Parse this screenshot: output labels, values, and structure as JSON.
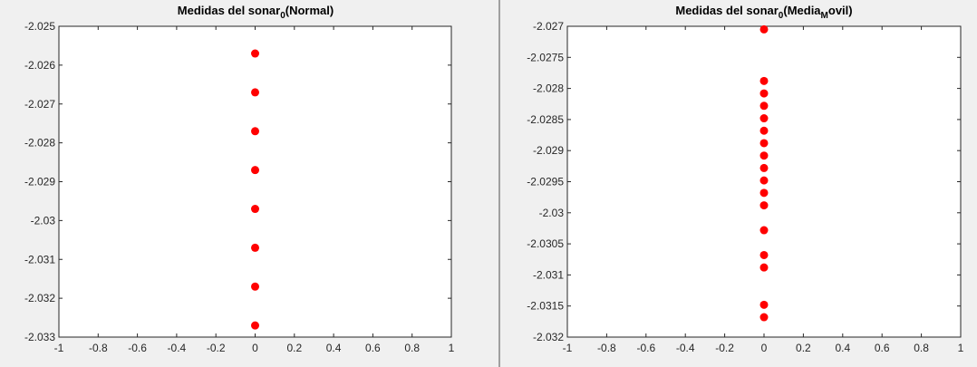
{
  "chart_data": [
    {
      "type": "scatter",
      "title": {
        "main": "Medidas del sonar",
        "sub": "0",
        "suffix": "(Normal)"
      },
      "xlim": [
        -1,
        1
      ],
      "ylim": [
        -2.033,
        -2.025
      ],
      "xticks": [
        -1,
        -0.8,
        -0.6,
        -0.4,
        -0.2,
        0,
        0.2,
        0.4,
        0.6,
        0.8,
        1
      ],
      "xtick_labels": [
        "-1",
        "-0.8",
        "-0.6",
        "-0.4",
        "-0.2",
        "0",
        "0.2",
        "0.4",
        "0.6",
        "0.8",
        "1"
      ],
      "yticks": [
        -2.025,
        -2.026,
        -2.027,
        -2.028,
        -2.029,
        -2.03,
        -2.031,
        -2.032,
        -2.033
      ],
      "ytick_labels": [
        "-2.025",
        "-2.026",
        "-2.027",
        "-2.028",
        "-2.029",
        "-2.03",
        "-2.031",
        "-2.032",
        "-2.033"
      ],
      "grid": false,
      "marker_color": "#ff0000",
      "points": [
        {
          "x": 0,
          "y": -2.0257
        },
        {
          "x": 0,
          "y": -2.0267
        },
        {
          "x": 0,
          "y": -2.0277
        },
        {
          "x": 0,
          "y": -2.0287
        },
        {
          "x": 0,
          "y": -2.0297
        },
        {
          "x": 0,
          "y": -2.0307
        },
        {
          "x": 0,
          "y": -2.0317
        },
        {
          "x": 0,
          "y": -2.0327
        }
      ]
    },
    {
      "type": "scatter",
      "title": {
        "main": "Medidas del sonar",
        "sub": "0",
        "suffix": "(Media",
        "sub2": "M",
        "suffix2": "ovil)"
      },
      "xlim": [
        -1,
        1
      ],
      "ylim": [
        -2.032,
        -2.027
      ],
      "xticks": [
        -1,
        -0.8,
        -0.6,
        -0.4,
        -0.2,
        0,
        0.2,
        0.4,
        0.6,
        0.8,
        1
      ],
      "xtick_labels": [
        "-1",
        "-0.8",
        "-0.6",
        "-0.4",
        "-0.2",
        "0",
        "0.2",
        "0.4",
        "0.6",
        "0.8",
        "1"
      ],
      "yticks": [
        -2.027,
        -2.0275,
        -2.028,
        -2.0285,
        -2.029,
        -2.0295,
        -2.03,
        -2.0305,
        -2.031,
        -2.0315,
        -2.032
      ],
      "ytick_labels": [
        "-2.027",
        "-2.0275",
        "-2.028",
        "-2.0285",
        "-2.029",
        "-2.0295",
        "-2.03",
        "-2.0305",
        "-2.031",
        "-2.0315",
        "-2.032"
      ],
      "grid": false,
      "marker_color": "#ff0000",
      "points": [
        {
          "x": 0,
          "y": -2.02705
        },
        {
          "x": 0,
          "y": -2.02788
        },
        {
          "x": 0,
          "y": -2.02808
        },
        {
          "x": 0,
          "y": -2.02828
        },
        {
          "x": 0,
          "y": -2.02848
        },
        {
          "x": 0,
          "y": -2.02868
        },
        {
          "x": 0,
          "y": -2.02888
        },
        {
          "x": 0,
          "y": -2.02908
        },
        {
          "x": 0,
          "y": -2.02928
        },
        {
          "x": 0,
          "y": -2.02948
        },
        {
          "x": 0,
          "y": -2.02968
        },
        {
          "x": 0,
          "y": -2.02988
        },
        {
          "x": 0,
          "y": -2.03028
        },
        {
          "x": 0,
          "y": -2.03068
        },
        {
          "x": 0,
          "y": -2.03088
        },
        {
          "x": 0,
          "y": -2.03148
        },
        {
          "x": 0,
          "y": -2.03168
        }
      ]
    }
  ]
}
